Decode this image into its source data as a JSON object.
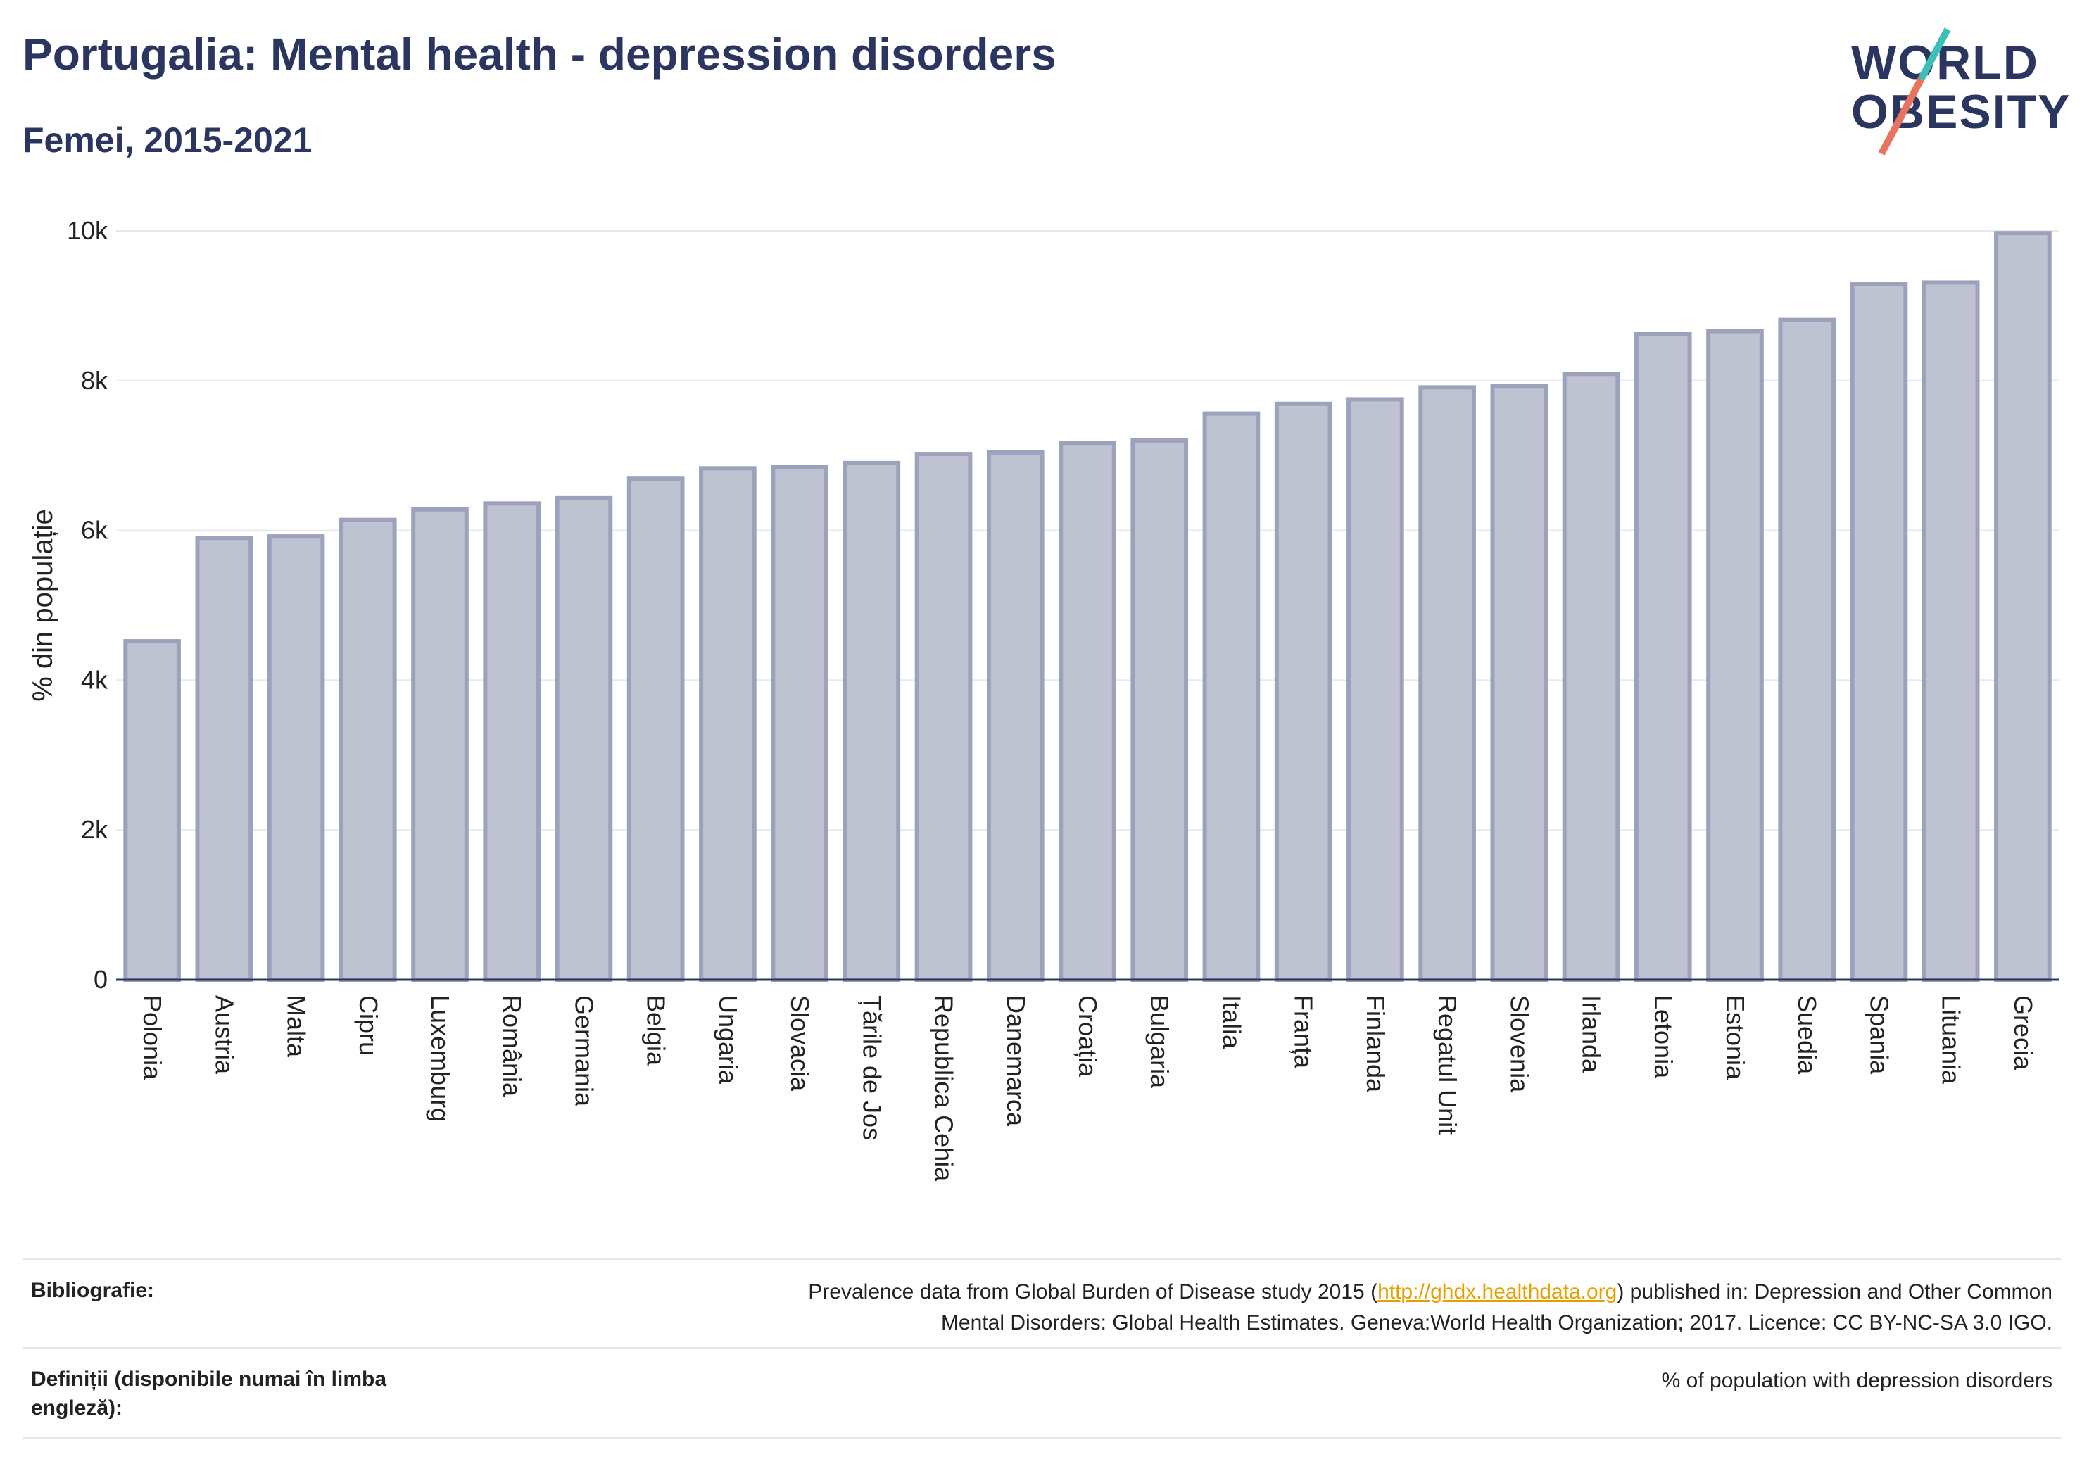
{
  "header": {
    "title": "Portugalia: Mental health - depression disorders",
    "subtitle": "Femei, 2015-2021"
  },
  "logo": {
    "line1": "WORLD",
    "line2": "OBESITY"
  },
  "colors": {
    "title": "#2a3560",
    "bar_fill": "#bfc2d0",
    "bar_stroke": "#9ca2bc",
    "axis": "#2a3560",
    "grid": "#e6e8ee",
    "link": "#e5a000"
  },
  "chart_data": {
    "type": "bar",
    "ylabel": "% din populație",
    "ylim": [
      0,
      10000
    ],
    "yticks": [
      {
        "value": 0,
        "label": "0"
      },
      {
        "value": 2000,
        "label": "2k"
      },
      {
        "value": 4000,
        "label": "4k"
      },
      {
        "value": 6000,
        "label": "6k"
      },
      {
        "value": 8000,
        "label": "8k"
      },
      {
        "value": 10000,
        "label": "10k"
      }
    ],
    "grid": true,
    "categories": [
      "Polonia",
      "Austria",
      "Malta",
      "Cipru",
      "Luxemburg",
      "România",
      "Germania",
      "Belgia",
      "Ungaria",
      "Slovacia",
      "Țările de Jos",
      "Republica Cehia",
      "Danemarca",
      "Croația",
      "Bulgaria",
      "Italia",
      "Franța",
      "Finlanda",
      "Regatul Unit",
      "Slovenia",
      "Irlanda",
      "Letonia",
      "Estonia",
      "Suedia",
      "Spania",
      "Lituania",
      "Grecia"
    ],
    "values": [
      4520,
      5900,
      5920,
      6140,
      6280,
      6360,
      6430,
      6690,
      6830,
      6850,
      6900,
      7020,
      7040,
      7170,
      7200,
      7560,
      7690,
      7750,
      7910,
      7930,
      8090,
      8620,
      8660,
      8810,
      9290,
      9310,
      9970
    ]
  },
  "footer": {
    "bib_label": "Bibliografie:",
    "bib_text_before": "Prevalence data from Global Burden of Disease study 2015 (",
    "bib_link": "http://ghdx.healthdata.org",
    "bib_text_after": ") published in: Depression and Other Common",
    "bib_text_line2": "Mental Disorders: Global Health Estimates. Geneva:World Health Organization; 2017. Licence: CC BY-NC-SA 3.0 IGO.",
    "def_label": "Definiții (disponibile numai în limba engleză):",
    "def_text": "% of population with depression disorders"
  }
}
